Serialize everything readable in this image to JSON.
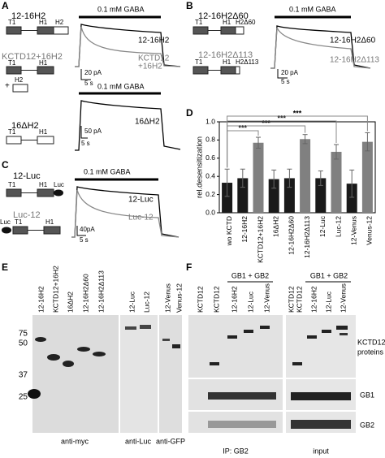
{
  "panel_a": {
    "label": "A",
    "constructs": [
      "12-16H2",
      "KCTD12+16H2",
      "16ΔH2"
    ],
    "domains": [
      "T1",
      "H1",
      "H2"
    ],
    "plus": "+",
    "stimulus": "0.1 mM GABA",
    "trace_labels": [
      "12-16H2",
      "KCTD12",
      "+16H2",
      "16ΔH2"
    ],
    "scale_bars": [
      "20 pA",
      "5 s",
      "50 pA",
      "5 s"
    ]
  },
  "panel_b": {
    "label": "B",
    "constructs": [
      "12-16H2Δ60",
      "12-16H2Δ113"
    ],
    "domains": [
      "T1",
      "H1",
      "H2Δ60",
      "H2Δ113"
    ],
    "stimulus": "0.1 mM GABA",
    "trace_labels": [
      "12-16H2Δ60",
      "12-16H2Δ113"
    ],
    "scale_bars": [
      "20 pA",
      "5 s"
    ]
  },
  "panel_c": {
    "label": "C",
    "constructs": [
      "12-Luc",
      "Luc-12"
    ],
    "domains": [
      "T1",
      "H1",
      "Luc"
    ],
    "stimulus": "0.1 mM GABA",
    "trace_labels": [
      "12-Luc",
      "Luc-12"
    ],
    "scale_bars": [
      "40pA",
      "5 s"
    ]
  },
  "chart_data": {
    "type": "bar",
    "label": "D",
    "y_label": "rel.desensitization",
    "categories": [
      "wo KCTD",
      "12-16H2",
      "KCTD12+16H2",
      "16ΔH2",
      "12-16H2Δ60",
      "12-16H2Δ113",
      "12-Luc",
      "Luc-12",
      "12-Venus",
      "Venus-12"
    ],
    "values": [
      0.33,
      0.38,
      0.77,
      0.37,
      0.38,
      0.81,
      0.38,
      0.67,
      0.32,
      0.78
    ],
    "errors": [
      0.15,
      0.1,
      0.06,
      0.1,
      0.1,
      0.05,
      0.08,
      0.08,
      0.15,
      0.1
    ],
    "colors": [
      "#1a1a1a",
      "#1a1a1a",
      "#808080",
      "#1a1a1a",
      "#1a1a1a",
      "#808080",
      "#1a1a1a",
      "#808080",
      "#1a1a1a",
      "#808080"
    ],
    "ylim": [
      0,
      1
    ],
    "yticks": [
      {
        "value": 0,
        "label": "0.0"
      },
      0.2,
      0.4,
      0.6,
      0.8,
      {
        "value": 1,
        "label": "1.0"
      }
    ],
    "significance": [
      "***",
      "***",
      "***",
      "***"
    ]
  },
  "panel_e": {
    "label": "E",
    "lanes": [
      "12-16H2",
      "KCTD12+16H2",
      "16ΔH2",
      "12-16H2Δ60",
      "12-16H2Δ113",
      "12-Luc",
      "Luc-12",
      "12-Venus",
      "Venus-12"
    ],
    "markers": [
      "75",
      "50",
      "37",
      "25"
    ],
    "antibodies": [
      "anti-myc",
      "anti-Luc",
      "anti-GFP"
    ]
  },
  "panel_f": {
    "label": "F",
    "groups": [
      "GB1 + GB2",
      "GB1 + GB2"
    ],
    "lanes": [
      "KCTD12",
      "KCTD12",
      "12-16H2",
      "12-Luc",
      "12-Venus"
    ],
    "row_labels": [
      "KCTD12",
      "proteins",
      "GB1",
      "GB2"
    ],
    "footers": [
      "IP: GB2",
      "input"
    ]
  }
}
